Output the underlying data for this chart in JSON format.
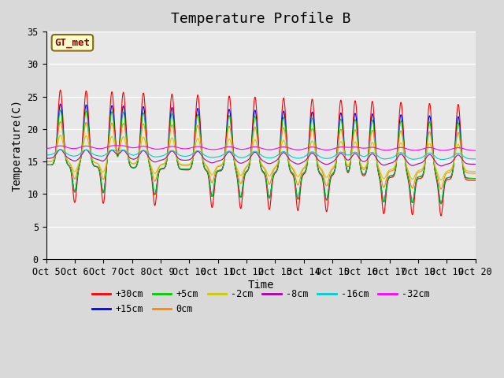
{
  "title": "Temperature Profile B",
  "xlabel": "Time",
  "ylabel": "Temperature(C)",
  "ylim": [
    0,
    35
  ],
  "xlim": [
    0,
    15
  ],
  "x_tick_labels": [
    "Oct 5",
    "Oct 6",
    "Oct 7",
    "Oct 8",
    "Oct 9",
    "Oct 10",
    "Oct 11",
    "Oct 12",
    "Oct 13",
    "Oct 14",
    "Oct 15",
    "Oct 16",
    "Oct 17",
    "Oct 18",
    "Oct 19",
    "Oct 20"
  ],
  "background_color": "#e8e8e8",
  "plot_bg_color": "#e8e8e8",
  "grid_color": "#ffffff",
  "legend_label": "GT_met",
  "legend_box_color": "#ffffcc",
  "legend_box_edge": "#8B6914",
  "series": [
    {
      "label": "+30cm",
      "color": "#ff0000"
    },
    {
      "label": "+15cm",
      "color": "#0000ff"
    },
    {
      "label": "+5cm",
      "color": "#00cc00"
    },
    {
      "label": "0cm",
      "color": "#ff8800"
    },
    {
      "label": "-2cm",
      "color": "#cccc00"
    },
    {
      "label": "-8cm",
      "color": "#aa00aa"
    },
    {
      "label": "-16cm",
      "color": "#00cccc"
    },
    {
      "label": "-32cm",
      "color": "#ff00ff"
    }
  ],
  "title_fontsize": 13,
  "axis_fontsize": 10,
  "tick_fontsize": 8.5
}
